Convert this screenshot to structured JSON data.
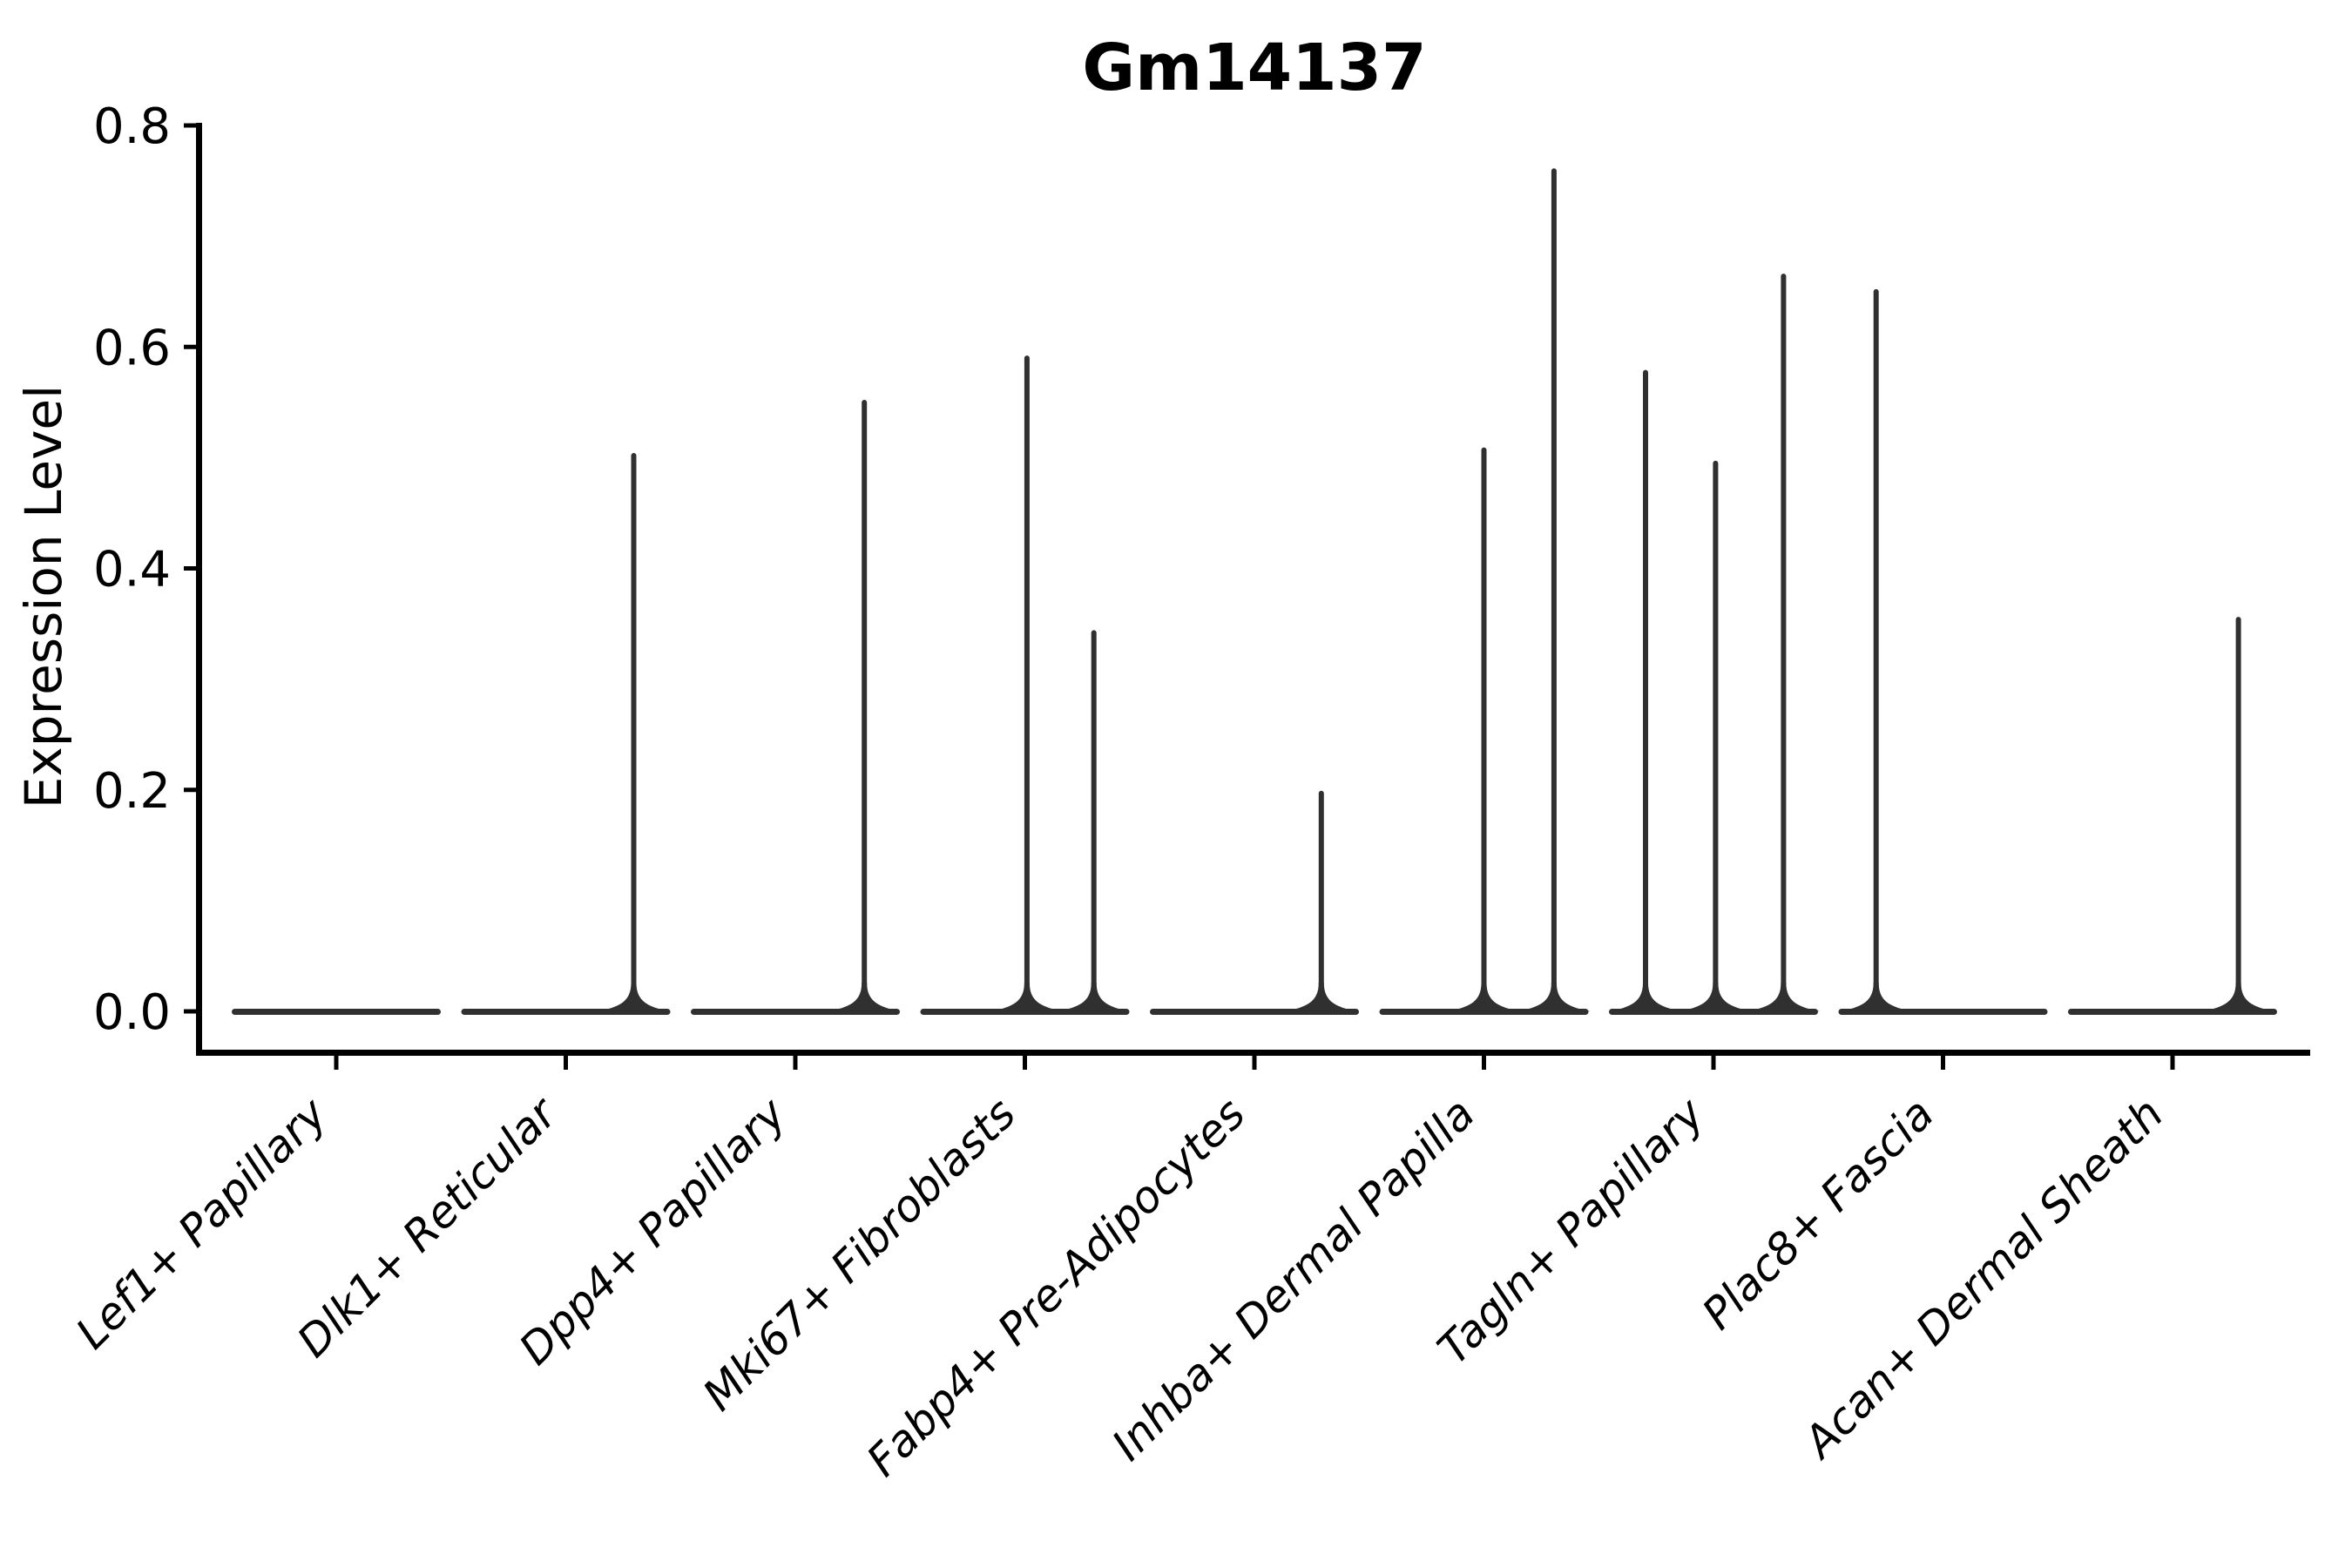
{
  "title": "Gm14137",
  "colors": {
    "violin_edge": "#303030",
    "axis": "#000000",
    "text": "#000000",
    "background": "#ffffff"
  },
  "chart_data": {
    "type": "violin",
    "title": "Gm14137",
    "xlabel": "",
    "ylabel": "Expression Level",
    "ylim": [
      -0.04,
      0.8
    ],
    "grid": false,
    "legend": null,
    "yticks": [
      0.0,
      0.2,
      0.4,
      0.6,
      0.8
    ],
    "ytick_labels": [
      "0.0",
      "0.2",
      "0.4",
      "0.6",
      "0.8"
    ],
    "categories": [
      "Lef1+ Papillary",
      "Dlk1+ Reticular",
      "Dpp4+ Papillary",
      "Mki67+ Fibroblasts",
      "Fabp4+ Pre-Adipocytes",
      "Inhba+ Dermal Papilla",
      "Tagln+ Papillary",
      "Plac8+ Fascia",
      "Acan+ Dermal Sheath"
    ],
    "violins": [
      {
        "category": "Lef1+ Papillary",
        "baseline": 0.0,
        "spikes": []
      },
      {
        "category": "Dlk1+ Reticular",
        "baseline": 0.0,
        "spikes": [
          {
            "offset": 0.65,
            "height": 0.505
          }
        ]
      },
      {
        "category": "Dpp4+ Papillary",
        "baseline": 0.0,
        "spikes": [
          {
            "offset": 0.66,
            "height": 0.553
          }
        ]
      },
      {
        "category": "Mki67+ Fibroblasts",
        "baseline": 0.0,
        "spikes": [
          {
            "offset": 0.02,
            "height": 0.593
          },
          {
            "offset": 0.66,
            "height": 0.345
          }
        ]
      },
      {
        "category": "Fabp4+ Pre-Adipocytes",
        "baseline": 0.0,
        "spikes": [
          {
            "offset": 0.64,
            "height": 0.2
          }
        ]
      },
      {
        "category": "Inhba+ Dermal Papilla",
        "baseline": 0.0,
        "spikes": [
          {
            "offset": 0.0,
            "height": 0.51
          },
          {
            "offset": 0.67,
            "height": 0.762
          }
        ]
      },
      {
        "category": "Tagln+ Papillary",
        "baseline": 0.0,
        "spikes": [
          {
            "offset": -0.65,
            "height": 0.58
          },
          {
            "offset": 0.02,
            "height": 0.498
          },
          {
            "offset": 0.67,
            "height": 0.667
          }
        ]
      },
      {
        "category": "Plac8+ Fascia",
        "baseline": 0.0,
        "spikes": [
          {
            "offset": -0.64,
            "height": 0.653
          }
        ]
      },
      {
        "category": "Acan+ Dermal Sheath",
        "baseline": 0.0,
        "spikes": [
          {
            "offset": 0.63,
            "height": 0.357
          }
        ]
      }
    ],
    "notes": "Spike offsets are fractions of the violin half-width from each category center; heights are Expression Level values."
  }
}
